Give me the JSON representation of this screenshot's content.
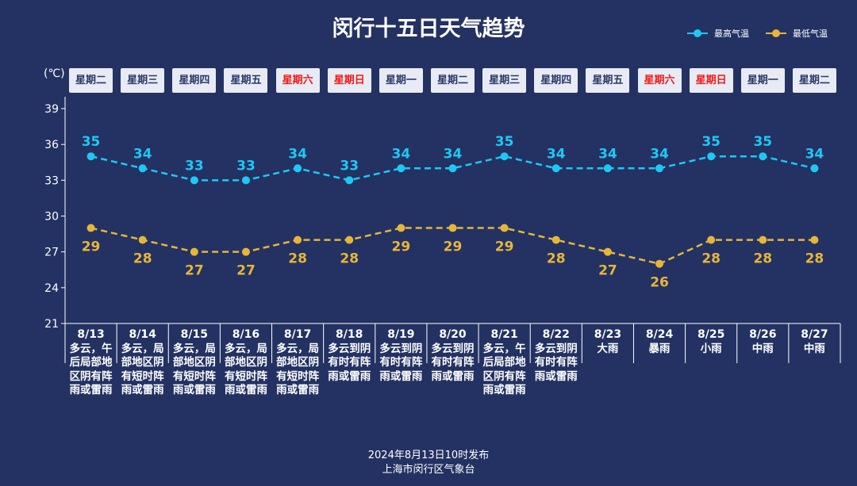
{
  "title": "闵行十五日天气趋势",
  "legend": {
    "high": "最高气温",
    "low": "最低气温"
  },
  "unit": "(℃)",
  "colors": {
    "background": "#233262",
    "high": "#1ec8f5",
    "low": "#e8b53a",
    "weekend": "#f01818"
  },
  "footer": {
    "published": "2024年8月13日10时发布",
    "source": "上海市闵行区气象台"
  },
  "days": [
    {
      "weekday": "星期二",
      "weekend": false,
      "date": "8/13",
      "weather": "多云，午后局部地区阴有阵雨或雷雨"
    },
    {
      "weekday": "星期三",
      "weekend": false,
      "date": "8/14",
      "weather": "多云，局部地区阴有短时阵雨或雷雨"
    },
    {
      "weekday": "星期四",
      "weekend": false,
      "date": "8/15",
      "weather": "多云，局部地区阴有短时阵雨或雷雨"
    },
    {
      "weekday": "星期五",
      "weekend": false,
      "date": "8/16",
      "weather": "多云，局部地区阴有短时阵雨或雷雨"
    },
    {
      "weekday": "星期六",
      "weekend": true,
      "date": "8/17",
      "weather": "多云，局部地区阴有短时阵雨或雷雨"
    },
    {
      "weekday": "星期日",
      "weekend": true,
      "date": "8/18",
      "weather": "多云到阴有时有阵雨或雷雨"
    },
    {
      "weekday": "星期一",
      "weekend": false,
      "date": "8/19",
      "weather": "多云到阴有时有阵雨或雷雨"
    },
    {
      "weekday": "星期二",
      "weekend": false,
      "date": "8/20",
      "weather": "多云到阴有时有阵雨或雷雨"
    },
    {
      "weekday": "星期三",
      "weekend": false,
      "date": "8/21",
      "weather": "多云，午后局部地区阴有阵雨或雷雨"
    },
    {
      "weekday": "星期四",
      "weekend": false,
      "date": "8/22",
      "weather": "多云到阴有时有阵雨或雷雨"
    },
    {
      "weekday": "星期五",
      "weekend": false,
      "date": "8/23",
      "weather": "大雨"
    },
    {
      "weekday": "星期六",
      "weekend": true,
      "date": "8/24",
      "weather": "暴雨"
    },
    {
      "weekday": "星期日",
      "weekend": true,
      "date": "8/25",
      "weather": "小雨"
    },
    {
      "weekday": "星期一",
      "weekend": false,
      "date": "8/26",
      "weather": "中雨"
    },
    {
      "weekday": "星期二",
      "weekend": false,
      "date": "8/27",
      "weather": "中雨"
    }
  ],
  "chart_data": {
    "type": "line",
    "categories": [
      "8/13",
      "8/14",
      "8/15",
      "8/16",
      "8/17",
      "8/18",
      "8/19",
      "8/20",
      "8/21",
      "8/22",
      "8/23",
      "8/24",
      "8/25",
      "8/26",
      "8/27"
    ],
    "series": [
      {
        "name": "最高气温",
        "values": [
          35,
          34,
          33,
          33,
          34,
          33,
          34,
          34,
          35,
          34,
          34,
          34,
          35,
          35,
          34
        ]
      },
      {
        "name": "最低气温",
        "values": [
          29,
          28,
          27,
          27,
          28,
          28,
          29,
          29,
          29,
          28,
          27,
          26,
          28,
          28,
          28
        ]
      }
    ],
    "ylabel": "(℃)",
    "ylim": [
      21,
      39
    ],
    "yticks": [
      21,
      24,
      27,
      30,
      33,
      36,
      39
    ],
    "legend": "top-right",
    "grid": false
  }
}
